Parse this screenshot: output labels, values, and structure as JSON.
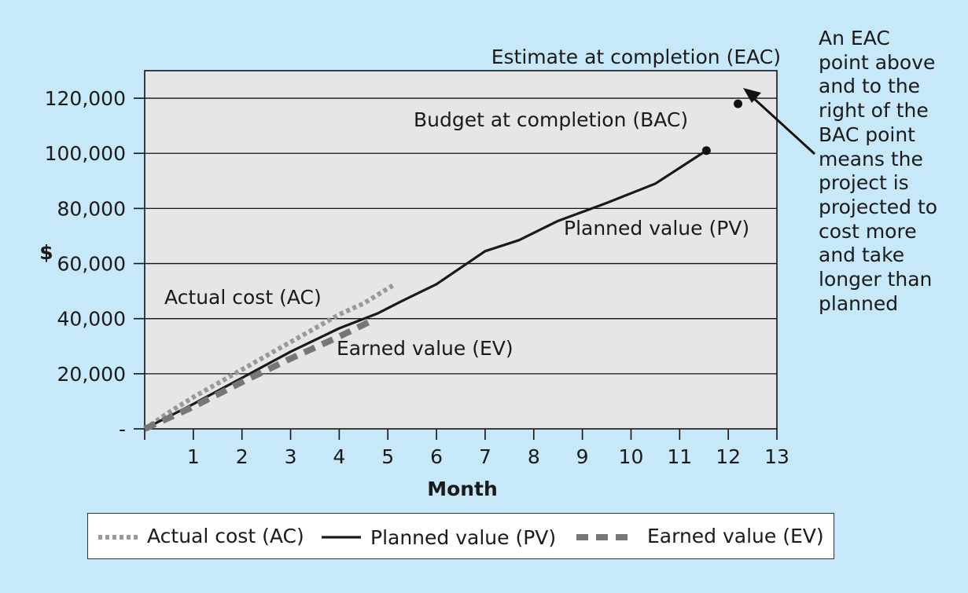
{
  "chart_data": {
    "type": "line",
    "xlabel": "Month",
    "ylabel": "$",
    "xlim": [
      0,
      13
    ],
    "ylim": [
      0,
      130000
    ],
    "x_ticks": [
      "1",
      "2",
      "3",
      "4",
      "5",
      "6",
      "7",
      "8",
      "9",
      "10",
      "11",
      "12",
      "13"
    ],
    "y_ticks": [
      {
        "value": 0,
        "label": "-"
      },
      {
        "value": 20000,
        "label": "20,000"
      },
      {
        "value": 40000,
        "label": "40,000"
      },
      {
        "value": 60000,
        "label": "60,000"
      },
      {
        "value": 80000,
        "label": "80,000"
      },
      {
        "value": 100000,
        "label": "100,000"
      },
      {
        "value": 120000,
        "label": "120,000"
      }
    ],
    "grid": "horizontal",
    "legend_position": "bottom",
    "series": [
      {
        "name": "Actual cost (AC)",
        "style": "dotted",
        "color": "#999999",
        "x": [
          0,
          0.5,
          1,
          1.5,
          2,
          2.5,
          3,
          3.5,
          4,
          4.5,
          5.1
        ],
        "y": [
          0,
          6000,
          11500,
          16500,
          21500,
          26500,
          31500,
          36500,
          41500,
          45500,
          52000
        ]
      },
      {
        "name": "Planned value (PV)",
        "style": "solid",
        "color": "#1a1a1a",
        "x": [
          0,
          1,
          2,
          3,
          4,
          4.8,
          5.3,
          6,
          6.5,
          7,
          7.7,
          8.5,
          9.5,
          10.5,
          11.55
        ],
        "y": [
          0,
          9000,
          18500,
          28000,
          36500,
          42000,
          46500,
          52500,
          58500,
          64500,
          68500,
          75500,
          82000,
          89000,
          101000
        ]
      },
      {
        "name": "Earned value (EV)",
        "style": "dashed",
        "color": "#777777",
        "x": [
          0,
          1,
          2,
          3,
          4,
          4.7
        ],
        "y": [
          0,
          8000,
          17000,
          25500,
          33500,
          39500
        ]
      }
    ],
    "points": [
      {
        "label": "Budget at completion (BAC)",
        "x": 11.55,
        "y": 101000
      },
      {
        "label": "Estimate at completion (EAC)",
        "x": 12.2,
        "y": 118000
      }
    ],
    "annotations": [
      {
        "text": "Actual cost (AC)"
      },
      {
        "text": "Earned value (EV)"
      },
      {
        "text": "Planned value (PV)"
      }
    ],
    "callout": {
      "lines": [
        "An EAC",
        "point above",
        "and to the",
        "right of the",
        "BAC point",
        "means the",
        "project is",
        "projected to",
        "cost more",
        "and take",
        "longer than",
        "planned"
      ]
    }
  }
}
